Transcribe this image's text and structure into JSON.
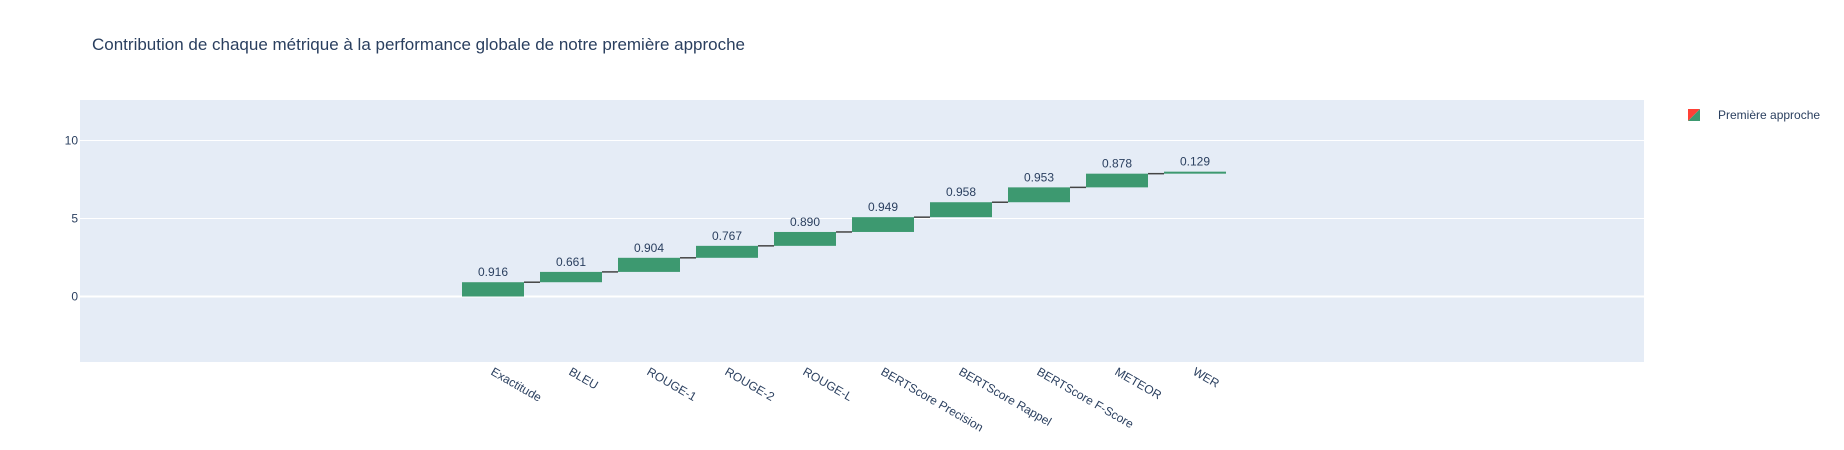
{
  "chart_data": {
    "type": "waterfall",
    "title": "Contribution de chaque métrique à la performance globale de notre première approche",
    "categories": [
      "Exactitude",
      "BLEU",
      "ROUGE-1",
      "ROUGE-2",
      "ROUGE-L",
      "BERTScore Precision",
      "BERTScore Rappel",
      "BERTScore F-Score",
      "METEOR",
      "WER"
    ],
    "values": [
      0.916,
      0.661,
      0.904,
      0.767,
      0.89,
      0.949,
      0.958,
      0.953,
      0.878,
      0.129
    ],
    "value_labels": [
      "0.916",
      "0.661",
      "0.904",
      "0.767",
      "0.890",
      "0.949",
      "0.958",
      "0.953",
      "0.878",
      "0.129"
    ],
    "ylim": [
      -4.2,
      12.6
    ],
    "yticks": [
      0,
      5,
      10
    ],
    "xlabel": "",
    "ylabel": "",
    "grid": true,
    "series": [
      {
        "name": "Première approche",
        "values": [
          0.916,
          0.661,
          0.904,
          0.767,
          0.89,
          0.949,
          0.958,
          0.953,
          0.878,
          0.129
        ]
      }
    ],
    "legend_position": "top-right",
    "colors": {
      "increasing": "#3d9970",
      "decreasing": "#ff4136",
      "plot_background": "#e5ecf6",
      "gridline": "#ffffff",
      "connector": "#444444",
      "text": "#2a3f5f"
    }
  }
}
